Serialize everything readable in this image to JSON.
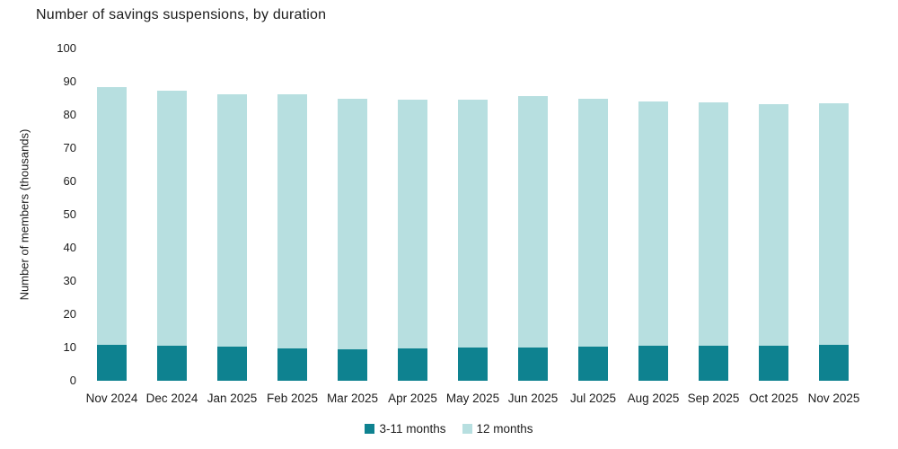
{
  "page": {
    "background": "#ffffff",
    "text_color": "#1c1c1c"
  },
  "chart_data": {
    "type": "bar",
    "stacked": true,
    "title": "Number of savings suspensions, by duration",
    "xlabel": "",
    "ylabel": "Number of members (thousands)",
    "ylim": [
      0,
      100
    ],
    "y_ticks": [
      0,
      10,
      20,
      30,
      40,
      50,
      60,
      70,
      80,
      90,
      100
    ],
    "grid": false,
    "legend_position": "bottom",
    "categories": [
      "Nov 2024",
      "Dec 2024",
      "Jan 2025",
      "Feb 2025",
      "Mar 2025",
      "Apr 2025",
      "May 2025",
      "Jun 2025",
      "Jul 2025",
      "Aug 2025",
      "Sep 2025",
      "Oct 2025",
      "Nov 2025"
    ],
    "series": [
      {
        "name": "3-11 months",
        "color": "#0E8290",
        "values": [
          10.8,
          10.5,
          10.2,
          9.7,
          9.5,
          9.6,
          9.9,
          10.0,
          10.3,
          10.5,
          10.5,
          10.6,
          10.7
        ]
      },
      {
        "name": "12 months",
        "color": "#B7DFE0",
        "values": [
          77.5,
          76.7,
          76.1,
          76.4,
          75.4,
          75.0,
          74.6,
          75.6,
          74.7,
          73.6,
          73.3,
          72.6,
          72.7
        ]
      }
    ],
    "totals": [
      88.3,
      87.2,
      86.3,
      86.1,
      84.9,
      84.6,
      84.5,
      85.6,
      85.0,
      84.1,
      83.8,
      83.2,
      83.4
    ]
  }
}
